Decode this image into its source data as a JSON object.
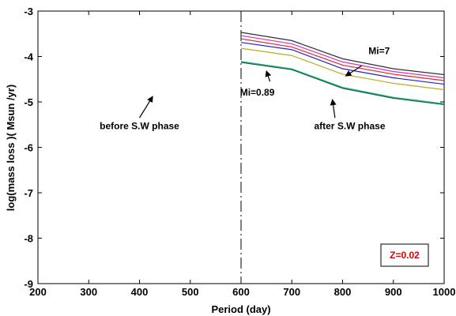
{
  "chart_data": {
    "type": "line",
    "xlabel": "Period (day)",
    "ylabel": "log(mass loss )( Msun /yr)",
    "xlim": [
      200,
      1000
    ],
    "ylim": [
      -9,
      -3
    ],
    "xticks": [
      200,
      300,
      400,
      500,
      600,
      700,
      800,
      900,
      1000
    ],
    "yticks": [
      -3,
      -4,
      -5,
      -6,
      -7,
      -8,
      -9
    ],
    "grid": false,
    "x": [
      600,
      700,
      800,
      900,
      1000
    ],
    "series": [
      {
        "color": "#303030",
        "values": [
          -3.47,
          -3.65,
          -4.05,
          -4.27,
          -4.4
        ]
      },
      {
        "color": "#cc33cc",
        "values": [
          -3.54,
          -3.72,
          -4.12,
          -4.33,
          -4.47
        ]
      },
      {
        "color": "#ee2222",
        "values": [
          -3.61,
          -3.79,
          -4.19,
          -4.39,
          -4.53
        ]
      },
      {
        "color": "#2222cc",
        "values": [
          -3.69,
          -3.85,
          -4.27,
          -4.47,
          -4.61
        ]
      },
      {
        "color": "#bbaa22",
        "values": [
          -3.82,
          -3.98,
          -4.39,
          -4.59,
          -4.73
        ]
      },
      {
        "color": "#22aa99",
        "values": [
          -4.11,
          -4.27,
          -4.68,
          -4.9,
          -5.04
        ]
      },
      {
        "color": "#116633",
        "values": [
          -4.13,
          -4.29,
          -4.7,
          -4.92,
          -5.06
        ]
      }
    ],
    "divider": {
      "x": 600,
      "style": "dash-dot",
      "color": "#000000"
    },
    "annotations": [
      {
        "text": "Mi=7",
        "text_at": [
          872,
          -3.95
        ],
        "arrow_from": [
          838,
          -4.2
        ],
        "arrow_to": [
          806,
          -4.43
        ]
      },
      {
        "text": "Mi=0.89",
        "text_at": [
          632,
          -4.86
        ],
        "arrow_from": [
          657,
          -4.55
        ],
        "arrow_to": [
          650,
          -4.32
        ]
      },
      {
        "text": "before S.W phase",
        "text_at": [
          400,
          -5.6
        ],
        "arrow_from": [
          400,
          -5.35
        ],
        "arrow_to": [
          426,
          -4.88
        ]
      },
      {
        "text": "after S.W phase",
        "text_at": [
          814,
          -5.6
        ],
        "arrow_from": [
          785,
          -5.35
        ],
        "arrow_to": [
          780,
          -4.95
        ]
      }
    ],
    "legend_box": {
      "text": "Z=0.02",
      "color": "#dd0000",
      "placement": "bottom-right"
    }
  }
}
